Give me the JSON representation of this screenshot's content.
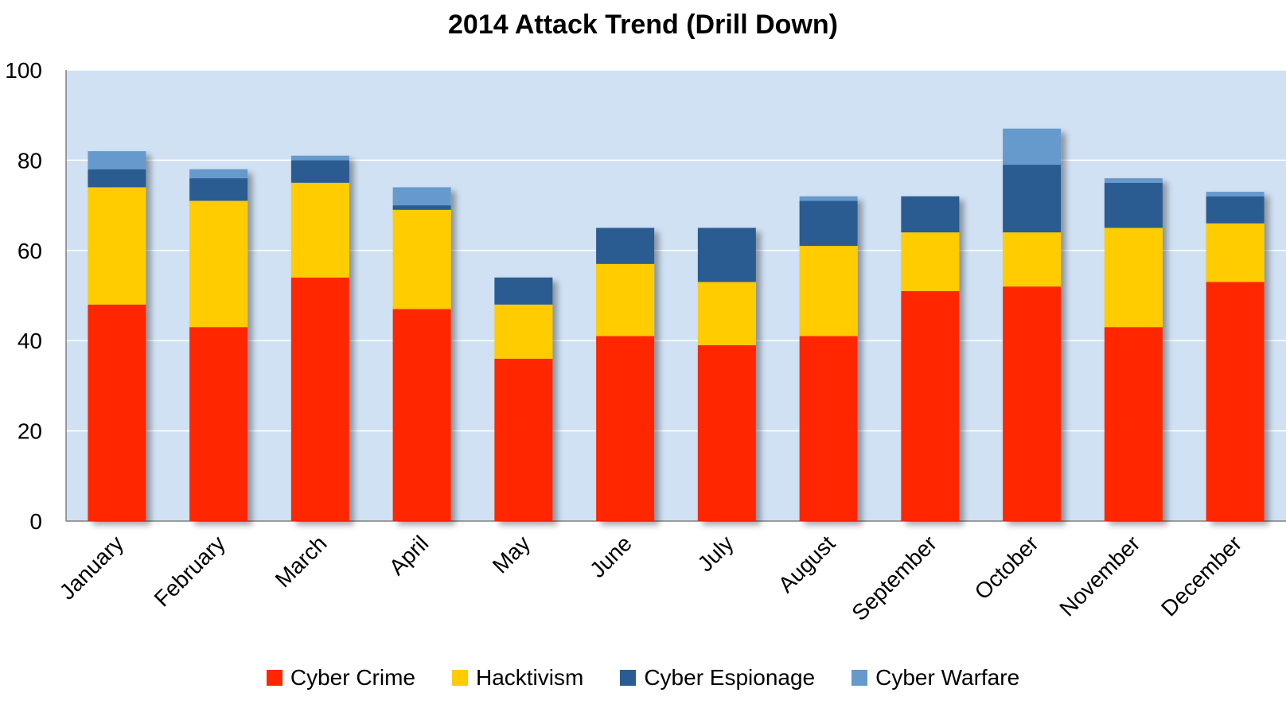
{
  "chart_data": {
    "type": "bar",
    "stacked": true,
    "title": "2014 Attack Trend (Drill Down)",
    "xlabel": "",
    "ylabel": "",
    "ylim": [
      0,
      100
    ],
    "yticks": [
      0,
      20,
      40,
      60,
      80,
      100
    ],
    "grid": true,
    "legend_position": "bottom",
    "plot_background": "#d0e1f3",
    "categories": [
      "January",
      "February",
      "March",
      "April",
      "May",
      "June",
      "July",
      "August",
      "September",
      "October",
      "November",
      "December"
    ],
    "series": [
      {
        "name": "Cyber Crime",
        "color": "#ff2600",
        "values": [
          48,
          43,
          54,
          47,
          36,
          41,
          39,
          41,
          51,
          52,
          43,
          53
        ]
      },
      {
        "name": "Hacktivism",
        "color": "#ffcc00",
        "values": [
          26,
          28,
          21,
          22,
          12,
          16,
          14,
          20,
          13,
          12,
          22,
          13
        ]
      },
      {
        "name": "Cyber Espionage",
        "color": "#2a5b92",
        "values": [
          4,
          5,
          5,
          1,
          6,
          8,
          12,
          10,
          8,
          15,
          10,
          6
        ]
      },
      {
        "name": "Cyber Warfare",
        "color": "#6699cc",
        "values": [
          4,
          2,
          1,
          4,
          0,
          0,
          0,
          1,
          0,
          8,
          1,
          1
        ]
      }
    ]
  }
}
